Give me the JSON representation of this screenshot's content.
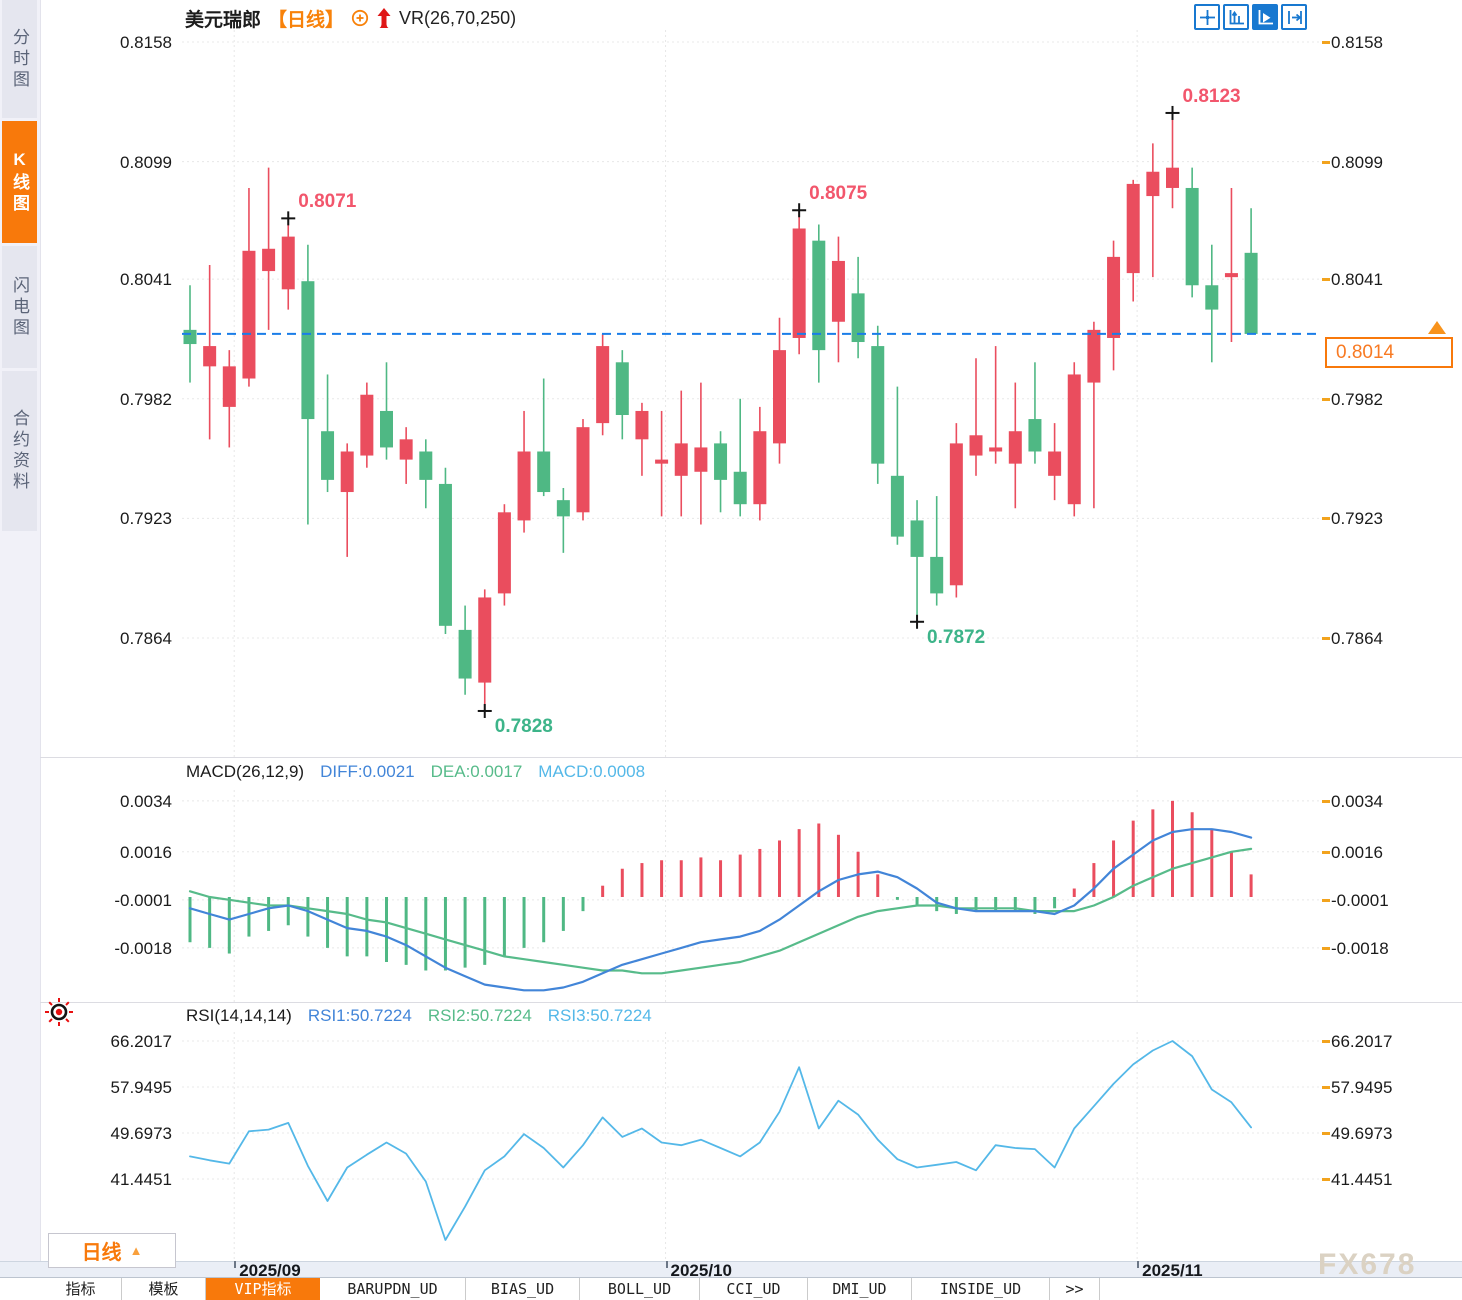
{
  "header": {
    "symbol": "美元瑞郎",
    "period_tag": "【日线】",
    "indicator": "VR(26,70,250)"
  },
  "sidebar": {
    "tabs": [
      {
        "label": "分时图",
        "active": false
      },
      {
        "label": "K线图",
        "active": true
      },
      {
        "label": "闪电图",
        "active": false
      },
      {
        "label": "合约资料",
        "active": false
      }
    ]
  },
  "toolbar": {
    "icons": [
      "crosshair-icon",
      "axis-scale-icon",
      "auto-scale-icon",
      "jump-latest-icon"
    ],
    "active_index": 2
  },
  "bottom": {
    "period_selector": "日线",
    "tabs": [
      {
        "label": "指标",
        "active": false
      },
      {
        "label": "模板",
        "active": false
      },
      {
        "label": "VIP指标",
        "active": true
      },
      {
        "label": "BARUPDN_UD",
        "active": false
      },
      {
        "label": "BIAS_UD",
        "active": false
      },
      {
        "label": "BOLL_UD",
        "active": false
      },
      {
        "label": "CCI_UD",
        "active": false
      },
      {
        "label": "DMI_UD",
        "active": false
      },
      {
        "label": "INSIDE_UD",
        "active": false
      },
      {
        "label": ">>",
        "active": false
      }
    ],
    "watermark": "FX678"
  },
  "colors": {
    "up": "#ea4d5e",
    "down": "#4fb884",
    "diff_line": "#4285d8",
    "dea_line": "#57bb8a",
    "rsi_line": "#54b8e8",
    "current_price_line": "#1a7de8",
    "accent_orange": "#f8790b",
    "high_label": "#f2566c",
    "low_label": "#3db489"
  },
  "chart_data": {
    "type": "candlestick+macd+rsi",
    "symbol": "美元瑞郎",
    "period": "日线",
    "price_axis": [
      "0.8158",
      "0.8099",
      "0.8041",
      "0.7982",
      "0.7923",
      "0.7864"
    ],
    "current_price": 0.8014,
    "current_price_label": "0.8014",
    "months": [
      {
        "label": "2025/09",
        "index": 2.25
      },
      {
        "label": "2025/10",
        "index": 24.2
      },
      {
        "label": "2025/11",
        "index": 48.2
      }
    ],
    "annotations": [
      {
        "label": "0.8071",
        "price": 0.8071,
        "index": 5,
        "kind": "high"
      },
      {
        "label": "0.8075",
        "price": 0.8075,
        "index": 31,
        "kind": "high"
      },
      {
        "label": "0.8123",
        "price": 0.8123,
        "index": 50,
        "kind": "high"
      },
      {
        "label": "0.7828",
        "price": 0.7828,
        "index": 15,
        "kind": "low"
      },
      {
        "label": "0.7872",
        "price": 0.7872,
        "index": 37,
        "kind": "low"
      }
    ],
    "candles": [
      [
        0.8016,
        0.8038,
        0.799,
        0.8009
      ],
      [
        0.7998,
        0.8048,
        0.7962,
        0.8008
      ],
      [
        0.7978,
        0.8006,
        0.7958,
        0.7998
      ],
      [
        0.7992,
        0.8086,
        0.7988,
        0.8055
      ],
      [
        0.8045,
        0.8096,
        0.8016,
        0.8056
      ],
      [
        0.8036,
        0.8071,
        0.8026,
        0.8062
      ],
      [
        0.804,
        0.8058,
        0.792,
        0.7972
      ],
      [
        0.7966,
        0.7994,
        0.7936,
        0.7942
      ],
      [
        0.7936,
        0.796,
        0.7904,
        0.7956
      ],
      [
        0.7954,
        0.799,
        0.7948,
        0.7984
      ],
      [
        0.7976,
        0.8,
        0.7952,
        0.7958
      ],
      [
        0.7952,
        0.7968,
        0.794,
        0.7962
      ],
      [
        0.7956,
        0.7962,
        0.7928,
        0.7942
      ],
      [
        0.794,
        0.7948,
        0.7866,
        0.787
      ],
      [
        0.7868,
        0.788,
        0.7836,
        0.7844
      ],
      [
        0.7842,
        0.7888,
        0.7828,
        0.7884
      ],
      [
        0.7886,
        0.793,
        0.788,
        0.7926
      ],
      [
        0.7922,
        0.7976,
        0.7916,
        0.7956
      ],
      [
        0.7956,
        0.7992,
        0.7934,
        0.7936
      ],
      [
        0.7932,
        0.7938,
        0.7906,
        0.7924
      ],
      [
        0.7926,
        0.7972,
        0.7922,
        0.7968
      ],
      [
        0.797,
        0.8014,
        0.7964,
        0.8008
      ],
      [
        0.8,
        0.8006,
        0.7962,
        0.7974
      ],
      [
        0.7962,
        0.798,
        0.7944,
        0.7976
      ],
      [
        0.795,
        0.7976,
        0.7924,
        0.7952
      ],
      [
        0.7944,
        0.7986,
        0.7924,
        0.796
      ],
      [
        0.7946,
        0.799,
        0.792,
        0.7958
      ],
      [
        0.796,
        0.7966,
        0.7926,
        0.7942
      ],
      [
        0.7946,
        0.7982,
        0.7924,
        0.793
      ],
      [
        0.793,
        0.7978,
        0.7922,
        0.7966
      ],
      [
        0.796,
        0.8022,
        0.795,
        0.8006
      ],
      [
        0.8012,
        0.8075,
        0.8004,
        0.8066
      ],
      [
        0.806,
        0.8068,
        0.799,
        0.8006
      ],
      [
        0.802,
        0.8062,
        0.8,
        0.805
      ],
      [
        0.8034,
        0.8052,
        0.8002,
        0.801
      ],
      [
        0.8008,
        0.8018,
        0.794,
        0.795
      ],
      [
        0.7944,
        0.7988,
        0.791,
        0.7914
      ],
      [
        0.7922,
        0.7932,
        0.7872,
        0.7904
      ],
      [
        0.7904,
        0.7934,
        0.788,
        0.7886
      ],
      [
        0.789,
        0.797,
        0.7884,
        0.796
      ],
      [
        0.7954,
        0.8002,
        0.7944,
        0.7964
      ],
      [
        0.7956,
        0.8008,
        0.795,
        0.7958
      ],
      [
        0.795,
        0.799,
        0.7928,
        0.7966
      ],
      [
        0.7972,
        0.8,
        0.795,
        0.7956
      ],
      [
        0.7944,
        0.797,
        0.7932,
        0.7956
      ],
      [
        0.793,
        0.8,
        0.7924,
        0.7994
      ],
      [
        0.799,
        0.802,
        0.7928,
        0.8016
      ],
      [
        0.8012,
        0.806,
        0.7996,
        0.8052
      ],
      [
        0.8044,
        0.809,
        0.803,
        0.8088
      ],
      [
        0.8082,
        0.8108,
        0.8042,
        0.8094
      ],
      [
        0.8086,
        0.8123,
        0.8076,
        0.8096
      ],
      [
        0.8086,
        0.8096,
        0.8032,
        0.8038
      ],
      [
        0.8038,
        0.8058,
        0.8,
        0.8026
      ],
      [
        0.8042,
        0.8086,
        0.801,
        0.8044
      ],
      [
        0.8054,
        0.8076,
        0.8014,
        0.8014
      ]
    ],
    "macd": {
      "title": "MACD(26,12,9)",
      "diff_label": "DIFF:0.0021",
      "dea_label": "DEA:0.0017",
      "macd_label": "MACD:0.0008",
      "axis": [
        "0.0034",
        "0.0016",
        "-0.0001",
        "-0.0018"
      ],
      "hist": [
        -0.0016,
        -0.0018,
        -0.002,
        -0.0014,
        -0.0012,
        -0.001,
        -0.0014,
        -0.0018,
        -0.0021,
        -0.0021,
        -0.0023,
        -0.0024,
        -0.0026,
        -0.0026,
        -0.0025,
        -0.0024,
        -0.0021,
        -0.0018,
        -0.0016,
        -0.0012,
        -0.0005,
        0.0004,
        0.001,
        0.0012,
        0.0013,
        0.0013,
        0.0014,
        0.0013,
        0.0015,
        0.0017,
        0.002,
        0.0024,
        0.0026,
        0.0022,
        0.0016,
        0.0008,
        -0.0001,
        -0.0003,
        -0.0005,
        -0.0006,
        -0.0005,
        -0.0005,
        -0.0005,
        -0.0006,
        -0.0004,
        0.0003,
        0.0012,
        0.002,
        0.0027,
        0.0031,
        0.0034,
        0.003,
        0.0024,
        0.0016,
        0.0008
      ],
      "diff": [
        -0.0004,
        -0.0006,
        -0.0008,
        -0.0006,
        -0.0004,
        -0.0003,
        -0.0005,
        -0.0008,
        -0.0011,
        -0.0012,
        -0.0014,
        -0.0017,
        -0.0021,
        -0.0025,
        -0.0028,
        -0.0031,
        -0.0032,
        -0.0033,
        -0.0033,
        -0.0032,
        -0.003,
        -0.0027,
        -0.0024,
        -0.0022,
        -0.002,
        -0.0018,
        -0.0016,
        -0.0015,
        -0.0014,
        -0.0012,
        -0.0008,
        -0.0003,
        0.0002,
        0.0006,
        0.0008,
        0.0009,
        0.0007,
        0.0003,
        -0.0002,
        -0.0004,
        -0.0005,
        -0.0005,
        -0.0005,
        -0.0005,
        -0.0006,
        -0.0003,
        0.0003,
        0.001,
        0.0015,
        0.002,
        0.0023,
        0.0024,
        0.0024,
        0.0023,
        0.0021
      ],
      "dea": [
        0.0002,
        0.0,
        -0.0001,
        -0.0002,
        -0.0003,
        -0.0003,
        -0.0004,
        -0.0005,
        -0.0006,
        -0.0008,
        -0.0009,
        -0.0011,
        -0.0013,
        -0.0015,
        -0.0017,
        -0.0019,
        -0.0021,
        -0.0022,
        -0.0023,
        -0.0024,
        -0.0025,
        -0.0026,
        -0.0026,
        -0.0027,
        -0.0027,
        -0.0026,
        -0.0025,
        -0.0024,
        -0.0023,
        -0.0021,
        -0.0019,
        -0.0016,
        -0.0013,
        -0.001,
        -0.0007,
        -0.0005,
        -0.0004,
        -0.0003,
        -0.0003,
        -0.0004,
        -0.0004,
        -0.0004,
        -0.0004,
        -0.0005,
        -0.0005,
        -0.0005,
        -0.0003,
        0.0,
        0.0004,
        0.0007,
        0.001,
        0.0012,
        0.0014,
        0.0016,
        0.0017
      ]
    },
    "rsi": {
      "title": "RSI(14,14,14)",
      "rsi1_label": "RSI1:50.7224",
      "rsi2_label": "RSI2:50.7224",
      "rsi3_label": "RSI3:50.7224",
      "axis": [
        "66.2017",
        "57.9495",
        "49.6973",
        "41.4451"
      ],
      "values": [
        45.5,
        44.8,
        44.2,
        50.0,
        50.3,
        51.5,
        43.8,
        37.5,
        43.5,
        45.8,
        48.0,
        46.0,
        41.0,
        30.5,
        36.5,
        43.0,
        45.5,
        49.5,
        47.0,
        43.5,
        47.5,
        52.5,
        49.0,
        50.5,
        48.0,
        47.5,
        48.5,
        47.0,
        45.5,
        48.0,
        53.5,
        61.5,
        50.5,
        55.5,
        53.0,
        48.5,
        45.0,
        43.5,
        44.0,
        44.5,
        43.0,
        47.5,
        47.0,
        46.8,
        43.5,
        50.5,
        54.5,
        58.5,
        62.0,
        64.5,
        66.2,
        63.5,
        57.5,
        55.2,
        50.7
      ]
    }
  }
}
